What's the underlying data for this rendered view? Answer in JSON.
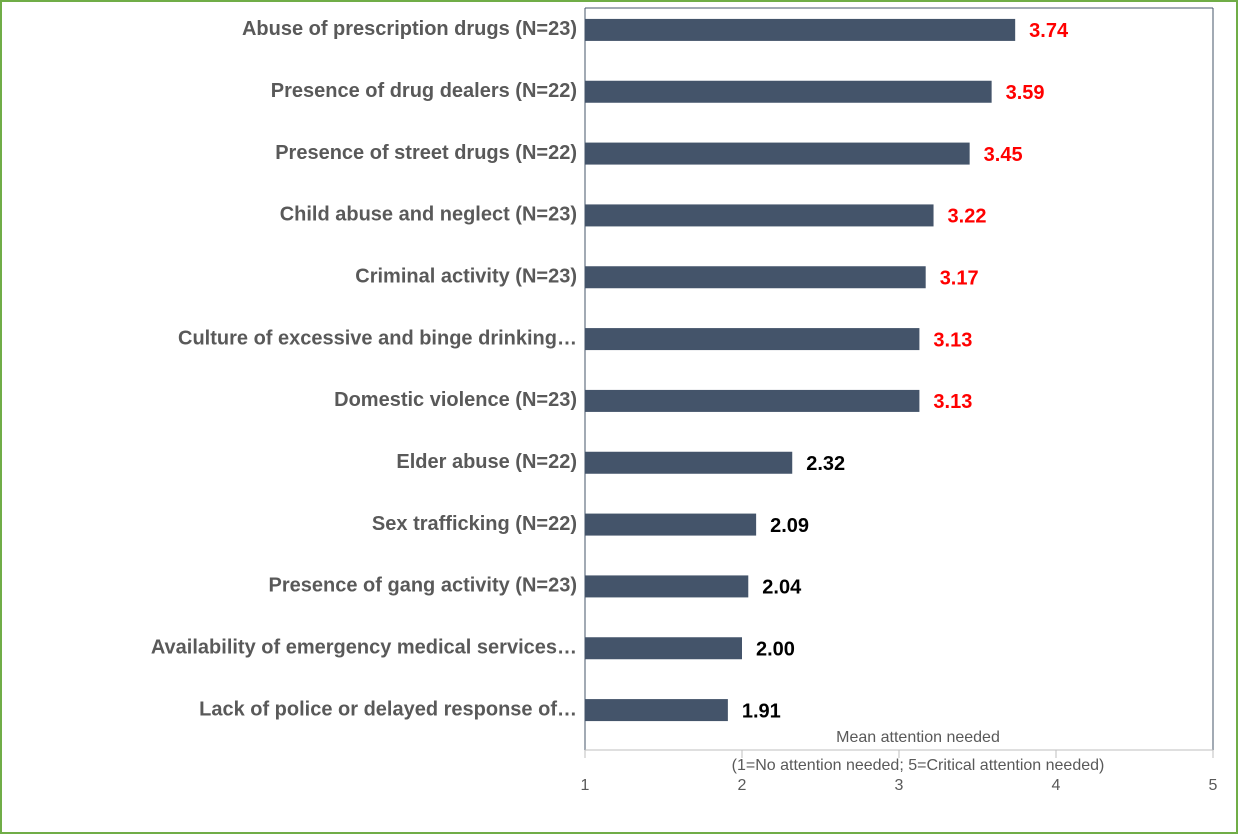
{
  "chart_data": {
    "type": "barh",
    "categories": [
      "Abuse of prescription drugs (N=23)",
      "Presence of drug dealers (N=22)",
      "Presence of street drugs (N=22)",
      "Child abuse and neglect (N=23)",
      "Criminal activity (N=23)",
      "Culture of excessive and binge drinking…",
      "Domestic violence (N=23)",
      "Elder abuse (N=22)",
      "Sex trafficking (N=22)",
      "Presence of gang activity (N=23)",
      "Availability of emergency medical services…",
      "Lack of police or delayed response of…"
    ],
    "values": [
      3.74,
      3.59,
      3.45,
      3.22,
      3.17,
      3.13,
      3.13,
      2.32,
      2.09,
      2.04,
      2.0,
      1.91
    ],
    "value_labels": [
      "3.74",
      "3.59",
      "3.45",
      "3.22",
      "3.17",
      "3.13",
      "3.13",
      "2.32",
      "2.09",
      "2.04",
      "2.00",
      "1.91"
    ],
    "label_colors": [
      "#ff0000",
      "#ff0000",
      "#ff0000",
      "#ff0000",
      "#ff0000",
      "#ff0000",
      "#ff0000",
      "#000000",
      "#000000",
      "#000000",
      "#000000",
      "#000000"
    ],
    "color": "#44546a",
    "xlabel": "Mean attention needed",
    "xlabel_note": "(1=No attention needed; 5=Critical attention needed)",
    "xlim": [
      1,
      5
    ],
    "xticks": [
      1,
      2,
      3,
      4,
      5
    ]
  }
}
